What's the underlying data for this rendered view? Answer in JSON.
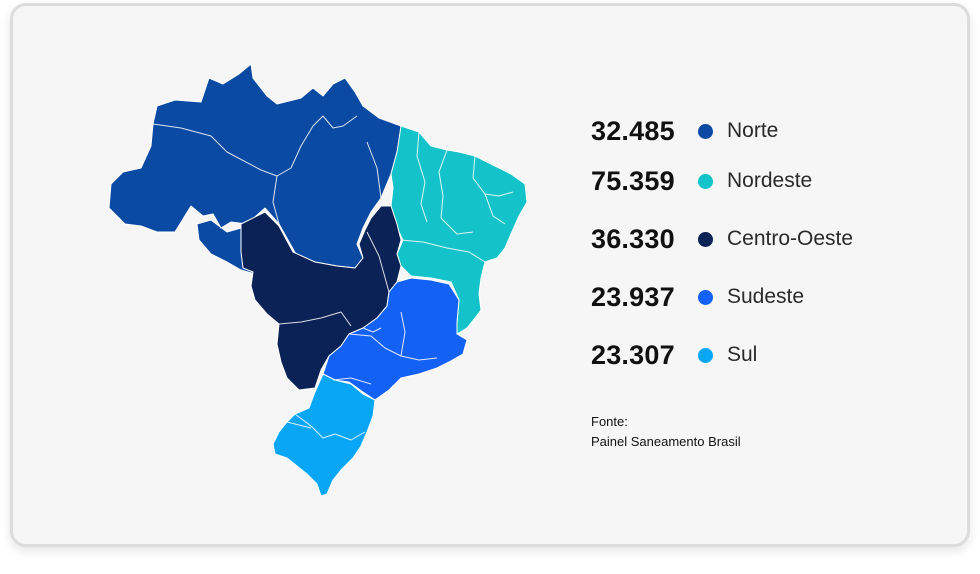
{
  "regions": [
    {
      "id": "norte",
      "value": "32.485",
      "label": "Norte",
      "color": "#0a4aa3"
    },
    {
      "id": "nordeste",
      "value": "75.359",
      "label": "Nordeste",
      "color": "#13c3c9"
    },
    {
      "id": "centro-oeste",
      "value": "36.330",
      "label": "Centro-Oeste",
      "color": "#0b2257"
    },
    {
      "id": "sudeste",
      "value": "23.937",
      "label": "Sudeste",
      "color": "#1462f5"
    },
    {
      "id": "sul",
      "value": "23.307",
      "label": "Sul",
      "color": "#08a6f5"
    }
  ],
  "source": {
    "label": "Fonte:",
    "text": "Painel Saneamento Brasil"
  }
}
